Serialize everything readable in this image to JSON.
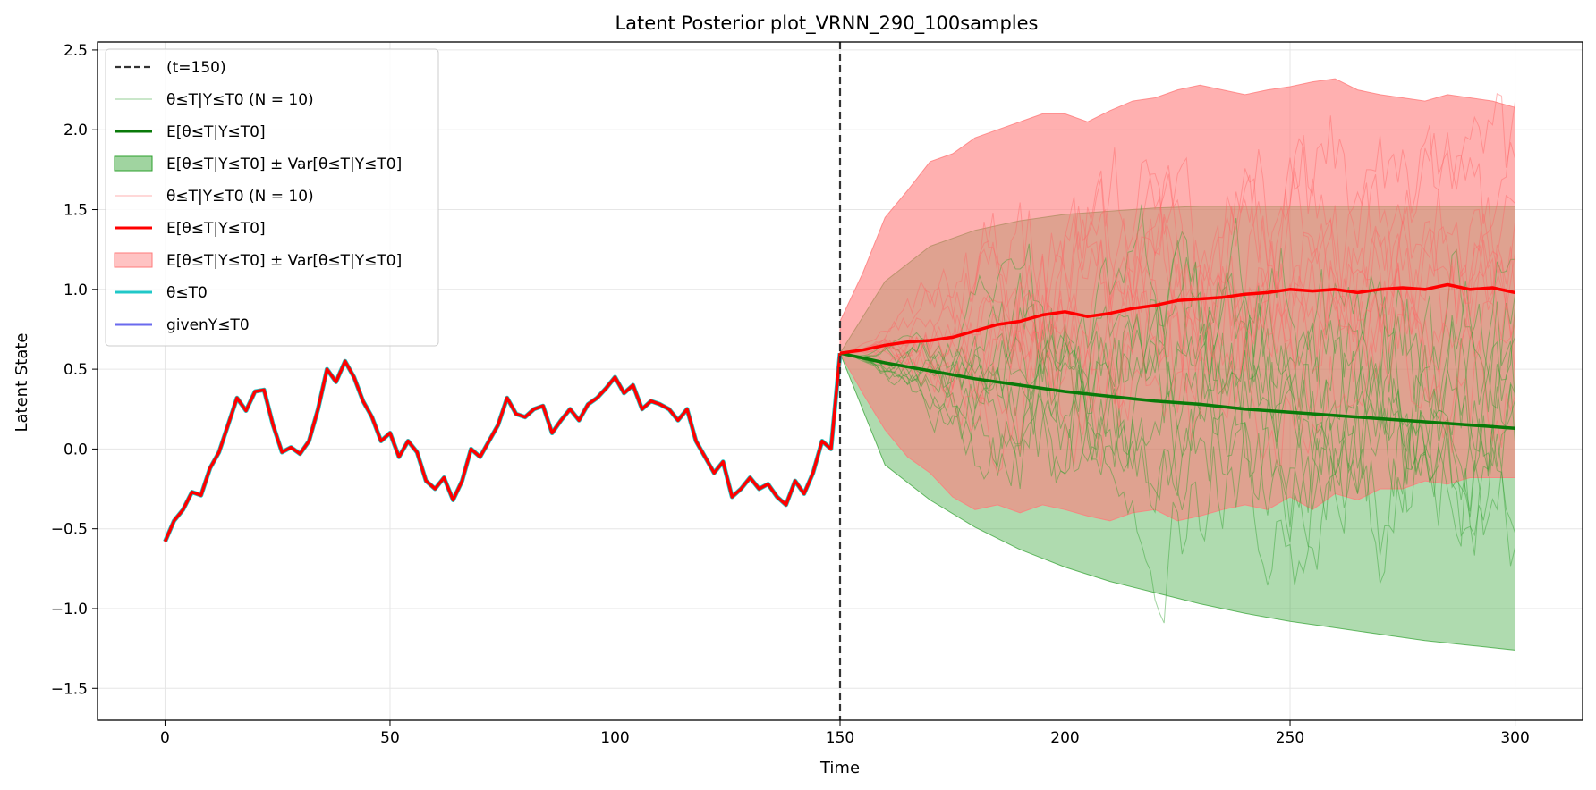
{
  "chart_data": {
    "type": "line",
    "title": "Latent Posterior plot_VRNN_290_100samples",
    "xlabel": "Time",
    "ylabel": "Latent State",
    "xlim": [
      -15,
      315
    ],
    "ylim": [
      -1.7,
      2.55
    ],
    "xticks": [
      0,
      50,
      100,
      150,
      200,
      250,
      300
    ],
    "xtick_labels": [
      "0",
      "50",
      "100",
      "150",
      "200",
      "250",
      "300"
    ],
    "yticks": [
      -1.5,
      -1.0,
      -0.5,
      0.0,
      0.5,
      1.0,
      1.5,
      2.0,
      2.5
    ],
    "ytick_labels": [
      "−1.5",
      "−1.0",
      "−0.5",
      "0.0",
      "0.5",
      "1.0",
      "1.5",
      "2.0",
      "2.5"
    ],
    "grid": true,
    "legend_position": "top-left",
    "vline": {
      "x": 150,
      "color": "#333333"
    },
    "history": {
      "x": [
        0,
        2,
        4,
        6,
        8,
        10,
        12,
        14,
        16,
        18,
        20,
        22,
        24,
        26,
        28,
        30,
        32,
        34,
        36,
        38,
        40,
        42,
        44,
        46,
        48,
        50,
        52,
        54,
        56,
        58,
        60,
        62,
        64,
        66,
        68,
        70,
        72,
        74,
        76,
        78,
        80,
        82,
        84,
        86,
        88,
        90,
        92,
        94,
        96,
        98,
        100,
        102,
        104,
        106,
        108,
        110,
        112,
        114,
        116,
        118,
        120,
        122,
        124,
        126,
        128,
        130,
        132,
        134,
        136,
        138,
        140,
        142,
        144,
        146,
        148,
        150
      ],
      "y": [
        -0.58,
        -0.45,
        -0.38,
        -0.27,
        -0.29,
        -0.12,
        -0.02,
        0.15,
        0.32,
        0.24,
        0.36,
        0.37,
        0.15,
        -0.02,
        0.01,
        -0.03,
        0.05,
        0.25,
        0.5,
        0.42,
        0.55,
        0.45,
        0.3,
        0.2,
        0.05,
        0.1,
        -0.05,
        0.05,
        -0.02,
        -0.2,
        -0.25,
        -0.18,
        -0.32,
        -0.2,
        0.0,
        -0.05,
        0.05,
        0.15,
        0.32,
        0.22,
        0.2,
        0.25,
        0.27,
        0.1,
        0.18,
        0.25,
        0.18,
        0.28,
        0.32,
        0.38,
        0.45,
        0.35,
        0.4,
        0.25,
        0.3,
        0.28,
        0.25,
        0.18,
        0.25,
        0.05,
        -0.05,
        -0.15,
        -0.08,
        -0.3,
        -0.25,
        -0.18,
        -0.25,
        -0.22,
        -0.3,
        -0.35,
        -0.2,
        -0.28,
        -0.15,
        0.05,
        0.0,
        0.6
      ]
    },
    "series": [
      {
        "name": "(t=150)",
        "kind": "vline",
        "color": "#333333"
      },
      {
        "name": "θ≤T|Y≤T0 (N = 10)",
        "kind": "samples",
        "color": "#2ca02c"
      },
      {
        "name": "E[θ≤T|Y≤T0]",
        "kind": "mean",
        "color": "#0a7a0a",
        "x": [
          150,
          160,
          170,
          180,
          190,
          200,
          210,
          220,
          230,
          240,
          250,
          260,
          270,
          280,
          290,
          300
        ],
        "y": [
          0.6,
          0.54,
          0.49,
          0.44,
          0.4,
          0.36,
          0.33,
          0.3,
          0.28,
          0.25,
          0.23,
          0.21,
          0.19,
          0.17,
          0.15,
          0.13
        ]
      },
      {
        "name": "E[θ≤T|Y≤T0] ± Var[θ≤T|Y≤T0]",
        "kind": "band",
        "color": "#2ca02c",
        "x": [
          150,
          160,
          170,
          180,
          190,
          200,
          210,
          220,
          230,
          240,
          250,
          260,
          270,
          280,
          290,
          300
        ],
        "lower": [
          0.6,
          -0.1,
          -0.32,
          -0.49,
          -0.63,
          -0.74,
          -0.83,
          -0.9,
          -0.97,
          -1.03,
          -1.08,
          -1.12,
          -1.16,
          -1.2,
          -1.23,
          -1.26
        ],
        "upper": [
          0.6,
          1.05,
          1.27,
          1.37,
          1.43,
          1.47,
          1.49,
          1.51,
          1.52,
          1.52,
          1.52,
          1.52,
          1.52,
          1.52,
          1.52,
          1.52
        ]
      },
      {
        "name": "θ≤T|Y≤T0 (N = 10)",
        "kind": "samples",
        "color": "#ff6666"
      },
      {
        "name": "E[θ≤T|Y≤T0]",
        "kind": "mean",
        "color": "#ff0000",
        "x": [
          150,
          155,
          160,
          165,
          170,
          175,
          180,
          185,
          190,
          195,
          200,
          205,
          210,
          215,
          220,
          225,
          230,
          235,
          240,
          245,
          250,
          255,
          260,
          265,
          270,
          275,
          280,
          285,
          290,
          295,
          300
        ],
        "y": [
          0.6,
          0.62,
          0.65,
          0.67,
          0.68,
          0.7,
          0.74,
          0.78,
          0.8,
          0.84,
          0.86,
          0.83,
          0.85,
          0.88,
          0.9,
          0.93,
          0.94,
          0.95,
          0.97,
          0.98,
          1.0,
          0.99,
          1.0,
          0.98,
          1.0,
          1.01,
          1.0,
          1.03,
          1.0,
          1.01,
          0.98
        ]
      },
      {
        "name": "E[θ≤T|Y≤T0] ± Var[θ≤T|Y≤T0]",
        "kind": "band",
        "color": "#ff7b7b",
        "x": [
          150,
          155,
          160,
          165,
          170,
          175,
          180,
          185,
          190,
          195,
          200,
          205,
          210,
          215,
          220,
          225,
          230,
          235,
          240,
          245,
          250,
          255,
          260,
          265,
          270,
          275,
          280,
          285,
          290,
          295,
          300
        ],
        "lower": [
          0.6,
          0.35,
          0.12,
          -0.05,
          -0.15,
          -0.3,
          -0.38,
          -0.35,
          -0.4,
          -0.35,
          -0.38,
          -0.42,
          -0.45,
          -0.4,
          -0.38,
          -0.45,
          -0.42,
          -0.38,
          -0.35,
          -0.38,
          -0.3,
          -0.38,
          -0.28,
          -0.32,
          -0.25,
          -0.25,
          -0.2,
          -0.22,
          -0.18,
          -0.18,
          -0.18
        ],
        "upper": [
          0.8,
          1.1,
          1.45,
          1.62,
          1.8,
          1.85,
          1.95,
          2.0,
          2.05,
          2.1,
          2.1,
          2.05,
          2.12,
          2.18,
          2.2,
          2.25,
          2.28,
          2.25,
          2.22,
          2.25,
          2.27,
          2.3,
          2.32,
          2.25,
          2.22,
          2.2,
          2.18,
          2.22,
          2.2,
          2.18,
          2.14
        ]
      },
      {
        "name": "θ≤T0",
        "kind": "truth",
        "color": "#20c8c8"
      },
      {
        "name": "givenY≤T0",
        "kind": "observed",
        "color": "#6a6aee"
      }
    ],
    "legend": [
      {
        "kind": "dash",
        "color": "#333333",
        "label": "(t=150)"
      },
      {
        "kind": "thin",
        "color": "#2ca02c",
        "label": "θ≤T|Y≤T0 (N = 10)"
      },
      {
        "kind": "thick",
        "color": "#0a7a0a",
        "label": "E[θ≤T|Y≤T0]"
      },
      {
        "kind": "patch",
        "color": "#2ca02c",
        "label": "E[θ≤T|Y≤T0] ± Var[θ≤T|Y≤T0]"
      },
      {
        "kind": "thin",
        "color": "#ff6666",
        "label": "θ≤T|Y≤T0 (N = 10)"
      },
      {
        "kind": "thick",
        "color": "#ff0000",
        "label": "E[θ≤T|Y≤T0]"
      },
      {
        "kind": "patch",
        "color": "#ff7b7b",
        "label": "E[θ≤T|Y≤T0] ± Var[θ≤T|Y≤T0]"
      },
      {
        "kind": "thick",
        "color": "#20c8c8",
        "label": "θ≤T0"
      },
      {
        "kind": "thick",
        "color": "#6a6aee",
        "label": "givenY≤T0"
      }
    ]
  }
}
